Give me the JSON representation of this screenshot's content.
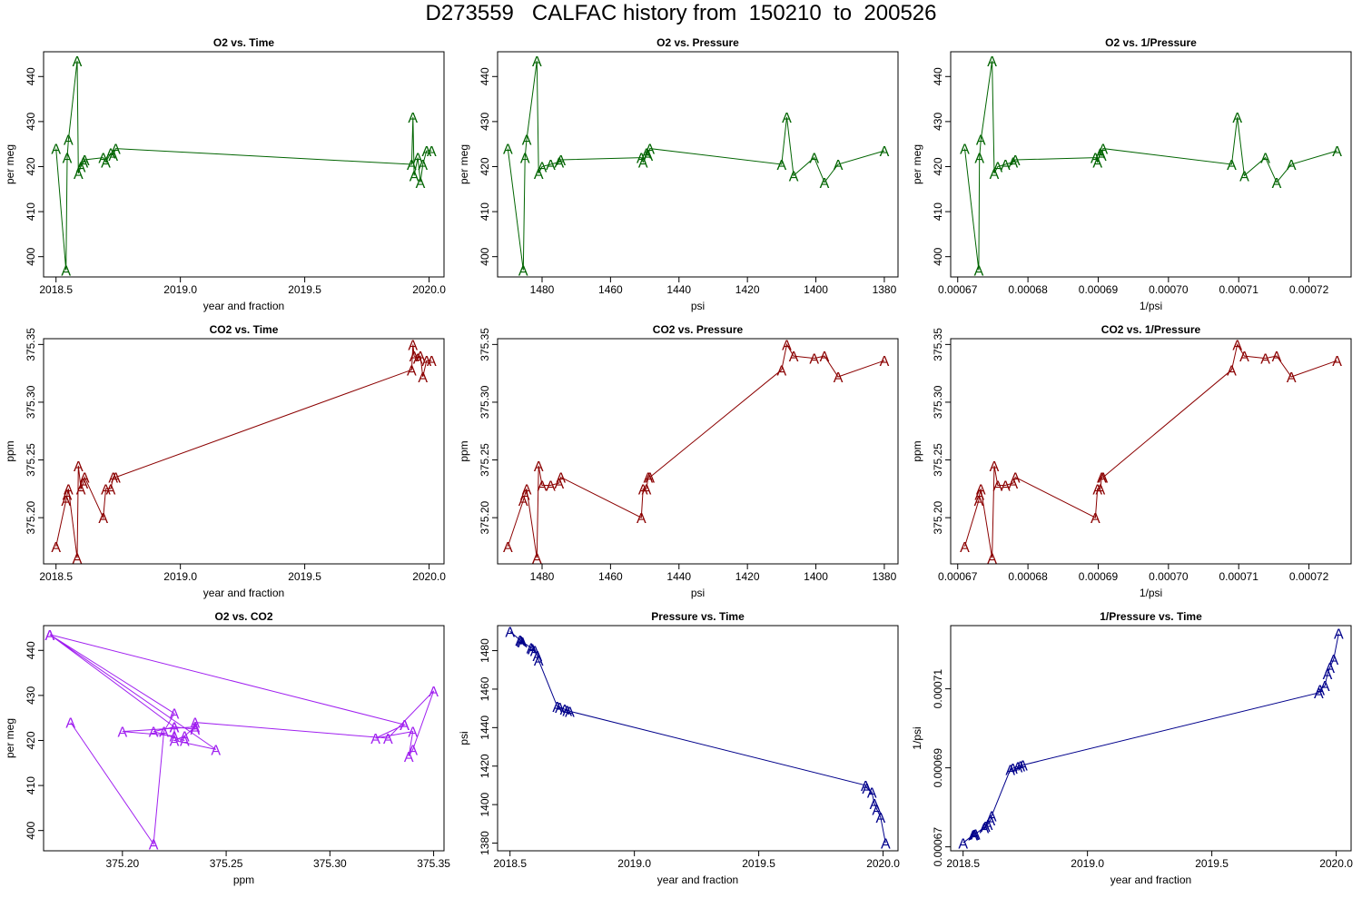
{
  "page_title": "D273559   CALFAC history from  150210  to  200526",
  "chart_data": [
    {
      "id": "o2-time",
      "type": "line",
      "title": "O2 vs. Time",
      "xlabel": "year and fraction",
      "ylabel": "per meg",
      "xlim": [
        2018.45,
        2020.06
      ],
      "ylim": [
        395.5,
        445.5
      ],
      "xticks": [
        2018.5,
        2019.0,
        2019.5,
        2020.0
      ],
      "xticklabels": [
        "2018.5",
        "2019.0",
        "2019.5",
        "2020.0"
      ],
      "yticks": [
        400,
        410,
        420,
        430,
        440
      ],
      "yticklabels": [
        "400",
        "410",
        "420",
        "430",
        "440"
      ],
      "color": "#006400",
      "marker": "A",
      "x": [
        2018.5,
        2018.54,
        2018.545,
        2018.55,
        2018.585,
        2018.59,
        2018.6,
        2018.61,
        2018.615,
        2018.69,
        2018.7,
        2018.72,
        2018.73,
        2018.74,
        2019.93,
        2019.935,
        2019.94,
        2019.955,
        2019.965,
        2019.975,
        2019.99,
        2020.01
      ],
      "y": [
        424.0,
        397.0,
        422.0,
        426.0,
        443.5,
        418.5,
        420.0,
        421.0,
        421.5,
        422.0,
        421.0,
        423.0,
        422.5,
        424.0,
        420.5,
        431.0,
        418.0,
        422.0,
        416.5,
        420.5,
        423.5,
        423.5
      ]
    },
    {
      "id": "o2-pressure",
      "type": "line",
      "title": "O2 vs. Pressure",
      "xlabel": "psi",
      "ylabel": "per meg",
      "xlim": [
        1493,
        1376
      ],
      "ylim": [
        395.5,
        445.5
      ],
      "xticks": [
        1480,
        1460,
        1440,
        1420,
        1400,
        1380
      ],
      "xticklabels": [
        "1480",
        "1460",
        "1440",
        "1420",
        "1400",
        "1380"
      ],
      "yticks": [
        400,
        410,
        420,
        430,
        440
      ],
      "yticklabels": [
        "400",
        "410",
        "420",
        "430",
        "440"
      ],
      "color": "#006400",
      "marker": "A",
      "x": [
        1490,
        1485.5,
        1485,
        1484.5,
        1481.5,
        1481,
        1480,
        1477.5,
        1475,
        1474.5,
        1451,
        1450.5,
        1449.5,
        1449,
        1448.5,
        1410,
        1408.5,
        1406.5,
        1400.5,
        1397.5,
        1393.5,
        1380
      ],
      "y": [
        424.0,
        397.0,
        422.0,
        426.0,
        443.5,
        418.5,
        420.0,
        420.5,
        421.0,
        421.5,
        422.0,
        421.0,
        423.0,
        422.5,
        424.0,
        420.5,
        431.0,
        418.0,
        422.0,
        416.5,
        420.5,
        423.5
      ]
    },
    {
      "id": "o2-invpressure",
      "type": "line",
      "title": "O2 vs. 1/Pressure",
      "xlabel": "1/psi",
      "ylabel": "per meg",
      "xlim": [
        0.000669,
        0.000726
      ],
      "ylim": [
        395.5,
        445.5
      ],
      "xticks": [
        0.00067,
        0.00068,
        0.00069,
        0.0007,
        0.00071,
        0.00072
      ],
      "xticklabels": [
        "0.00067",
        "0.00068",
        "0.00069",
        "0.00070",
        "0.00071",
        "0.00072"
      ],
      "yticks": [
        400,
        410,
        420,
        430,
        440
      ],
      "yticklabels": [
        "400",
        "410",
        "420",
        "430",
        "440"
      ],
      "color": "#006400",
      "marker": "A",
      "x": [
        0.000671,
        0.000673,
        0.0006731,
        0.0006733,
        0.0006749,
        0.0006752,
        0.0006757,
        0.0006768,
        0.0006779,
        0.0006782,
        0.0006896,
        0.0006899,
        0.0006903,
        0.0006905,
        0.0006907,
        0.000709,
        0.0007098,
        0.0007108,
        0.0007138,
        0.0007154,
        0.0007175,
        0.000724
      ],
      "y": [
        424.0,
        397.0,
        422.0,
        426.0,
        443.5,
        418.5,
        420.0,
        420.5,
        421.0,
        421.5,
        422.0,
        421.0,
        423.0,
        422.5,
        424.0,
        420.5,
        431.0,
        418.0,
        422.0,
        416.5,
        420.5,
        423.5
      ]
    },
    {
      "id": "co2-time",
      "type": "line",
      "title": "CO2 vs. Time",
      "xlabel": "year and fraction",
      "ylabel": "ppm",
      "xlim": [
        2018.45,
        2020.06
      ],
      "ylim": [
        375.16,
        375.355
      ],
      "xticks": [
        2018.5,
        2019.0,
        2019.5,
        2020.0
      ],
      "xticklabels": [
        "2018.5",
        "2019.0",
        "2019.5",
        "2020.0"
      ],
      "yticks": [
        375.2,
        375.25,
        375.3,
        375.35
      ],
      "yticklabels": [
        "375.20",
        "375.25",
        "375.30",
        "375.35"
      ],
      "color": "#8b0000",
      "marker": "A",
      "x": [
        2018.5,
        2018.54,
        2018.545,
        2018.55,
        2018.585,
        2018.59,
        2018.6,
        2018.61,
        2018.615,
        2018.69,
        2018.7,
        2018.72,
        2018.73,
        2018.74,
        2019.93,
        2019.935,
        2019.94,
        2019.955,
        2019.965,
        2019.975,
        2019.99,
        2020.01
      ],
      "y": [
        375.175,
        375.215,
        375.22,
        375.225,
        375.165,
        375.245,
        375.225,
        375.23,
        375.235,
        375.2,
        375.225,
        375.225,
        375.235,
        375.235,
        375.328,
        375.35,
        375.34,
        375.338,
        375.34,
        375.322,
        375.336,
        375.336
      ]
    },
    {
      "id": "co2-pressure",
      "type": "line",
      "title": "CO2 vs. Pressure",
      "xlabel": "psi",
      "ylabel": "ppm",
      "xlim": [
        1493,
        1376
      ],
      "ylim": [
        375.16,
        375.355
      ],
      "xticks": [
        1480,
        1460,
        1440,
        1420,
        1400,
        1380
      ],
      "xticklabels": [
        "1480",
        "1460",
        "1440",
        "1420",
        "1400",
        "1380"
      ],
      "yticks": [
        375.2,
        375.25,
        375.3,
        375.35
      ],
      "yticklabels": [
        "375.20",
        "375.25",
        "375.30",
        "375.35"
      ],
      "color": "#8b0000",
      "marker": "A",
      "x": [
        1490,
        1485.5,
        1485,
        1484.5,
        1481.5,
        1481,
        1480,
        1477.5,
        1475,
        1474.5,
        1451,
        1450.5,
        1449.5,
        1449,
        1448.5,
        1410,
        1408.5,
        1406.5,
        1400.5,
        1397.5,
        1393.5,
        1380
      ],
      "y": [
        375.175,
        375.215,
        375.22,
        375.225,
        375.165,
        375.245,
        375.228,
        375.228,
        375.23,
        375.235,
        375.2,
        375.225,
        375.225,
        375.235,
        375.235,
        375.328,
        375.35,
        375.34,
        375.338,
        375.34,
        375.322,
        375.336
      ]
    },
    {
      "id": "co2-invpressure",
      "type": "line",
      "title": "CO2 vs. 1/Pressure",
      "xlabel": "1/psi",
      "ylabel": "ppm",
      "xlim": [
        0.000669,
        0.000726
      ],
      "ylim": [
        375.16,
        375.355
      ],
      "xticks": [
        0.00067,
        0.00068,
        0.00069,
        0.0007,
        0.00071,
        0.00072
      ],
      "xticklabels": [
        "0.00067",
        "0.00068",
        "0.00069",
        "0.00070",
        "0.00071",
        "0.00072"
      ],
      "yticks": [
        375.2,
        375.25,
        375.3,
        375.35
      ],
      "yticklabels": [
        "375.20",
        "375.25",
        "375.30",
        "375.35"
      ],
      "color": "#8b0000",
      "marker": "A",
      "x": [
        0.000671,
        0.000673,
        0.0006731,
        0.0006733,
        0.0006749,
        0.0006752,
        0.0006757,
        0.0006768,
        0.0006779,
        0.0006782,
        0.0006896,
        0.0006899,
        0.0006903,
        0.0006905,
        0.0006907,
        0.000709,
        0.0007098,
        0.0007108,
        0.0007138,
        0.0007154,
        0.0007175,
        0.000724
      ],
      "y": [
        375.175,
        375.215,
        375.22,
        375.225,
        375.165,
        375.245,
        375.228,
        375.228,
        375.23,
        375.235,
        375.2,
        375.225,
        375.225,
        375.235,
        375.235,
        375.328,
        375.35,
        375.34,
        375.338,
        375.34,
        375.322,
        375.336
      ]
    },
    {
      "id": "o2-co2",
      "type": "line",
      "title": "O2 vs. CO2",
      "xlabel": "ppm",
      "ylabel": "per meg",
      "xlim": [
        375.162,
        375.355
      ],
      "ylim": [
        395.5,
        445.5
      ],
      "xticks": [
        375.2,
        375.25,
        375.3,
        375.35
      ],
      "xticklabels": [
        "375.20",
        "375.25",
        "375.30",
        "375.35"
      ],
      "yticks": [
        400,
        410,
        420,
        430,
        440
      ],
      "yticklabels": [
        "400",
        "410",
        "420",
        "430",
        "440"
      ],
      "color": "#a020f0",
      "marker": "A",
      "x": [
        375.175,
        375.215,
        375.22,
        375.225,
        375.165,
        375.245,
        375.225,
        375.23,
        375.235,
        375.2,
        375.225,
        375.225,
        375.235,
        375.235,
        375.328,
        375.35,
        375.34,
        375.338,
        375.34,
        375.322,
        375.336,
        375.336,
        375.165,
        375.225,
        375.215,
        375.23
      ],
      "y": [
        424.0,
        397.0,
        422.0,
        426.0,
        443.5,
        418.0,
        420.0,
        421.0,
        423.0,
        422.0,
        421.0,
        423.0,
        422.5,
        424.0,
        420.5,
        431.0,
        418.0,
        416.5,
        422.0,
        420.5,
        423.5,
        423.5,
        443.5,
        423.0,
        422.0,
        420.0
      ]
    },
    {
      "id": "pressure-time",
      "type": "line",
      "title": "Pressure vs. Time",
      "xlabel": "year and fraction",
      "ylabel": "psi",
      "xlim": [
        2018.45,
        2020.06
      ],
      "ylim": [
        1376,
        1493
      ],
      "xticks": [
        2018.5,
        2019.0,
        2019.5,
        2020.0
      ],
      "xticklabels": [
        "2018.5",
        "2019.0",
        "2019.5",
        "2020.0"
      ],
      "yticks": [
        1380,
        1400,
        1420,
        1440,
        1460,
        1480
      ],
      "yticklabels": [
        "1380",
        "1400",
        "1420",
        "1440",
        "1460",
        "1480"
      ],
      "color": "#00008b",
      "marker": "A",
      "x": [
        2018.5,
        2018.54,
        2018.545,
        2018.55,
        2018.585,
        2018.59,
        2018.6,
        2018.61,
        2018.615,
        2018.69,
        2018.7,
        2018.72,
        2018.73,
        2018.74,
        2019.93,
        2019.935,
        2019.955,
        2019.965,
        2019.975,
        2019.99,
        2020.01
      ],
      "y": [
        1490,
        1485.5,
        1485,
        1484.5,
        1481.5,
        1481,
        1480,
        1477.5,
        1475,
        1451,
        1450.5,
        1449.5,
        1449,
        1448.5,
        1410,
        1408.5,
        1406.5,
        1400.5,
        1397.5,
        1393.5,
        1380
      ]
    },
    {
      "id": "invpressure-time",
      "type": "line",
      "title": "1/Pressure vs. Time",
      "xlabel": "year and fraction",
      "ylabel": "1/psi",
      "xlim": [
        2018.45,
        2020.06
      ],
      "ylim": [
        0.000669,
        0.000726
      ],
      "xticks": [
        2018.5,
        2019.0,
        2019.5,
        2020.0
      ],
      "xticklabels": [
        "2018.5",
        "2019.0",
        "2019.5",
        "2020.0"
      ],
      "yticks": [
        0.00067,
        0.00069,
        0.00071
      ],
      "yticklabels": [
        "0.00067",
        "0.00069",
        "0.00071"
      ],
      "color": "#00008b",
      "marker": "A",
      "x": [
        2018.5,
        2018.54,
        2018.545,
        2018.55,
        2018.585,
        2018.59,
        2018.6,
        2018.61,
        2018.615,
        2018.69,
        2018.7,
        2018.72,
        2018.73,
        2018.74,
        2019.93,
        2019.935,
        2019.955,
        2019.965,
        2019.975,
        2019.99,
        2020.01
      ],
      "y": [
        0.000671,
        0.000673,
        0.0006731,
        0.0006733,
        0.0006749,
        0.0006752,
        0.0006757,
        0.0006768,
        0.0006779,
        0.0006896,
        0.0006899,
        0.0006903,
        0.0006905,
        0.0006907,
        0.000709,
        0.0007098,
        0.0007108,
        0.0007138,
        0.0007154,
        0.0007175,
        0.000724
      ]
    }
  ]
}
